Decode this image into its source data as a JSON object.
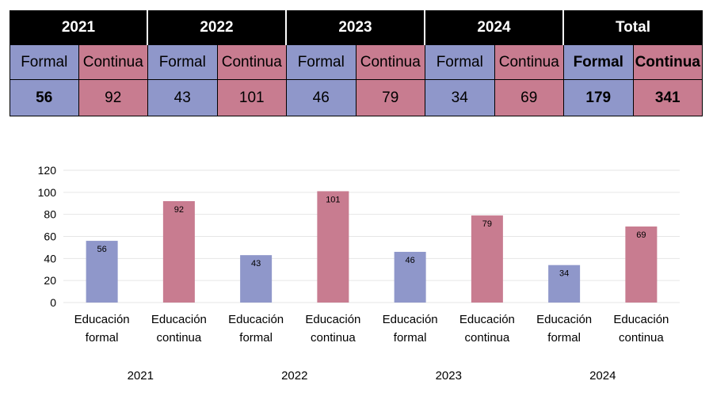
{
  "table": {
    "years": [
      "2021",
      "2022",
      "2023",
      "2024",
      "Total"
    ],
    "sub_labels": [
      "Formal",
      "Continua"
    ],
    "values": [
      [
        "56",
        "92"
      ],
      [
        "43",
        "101"
      ],
      [
        "46",
        "79"
      ],
      [
        "34",
        "69"
      ],
      [
        "179",
        "341"
      ]
    ]
  },
  "colors": {
    "formal": "#8f97ca",
    "continua": "#c87c90",
    "header_bg": "#000000",
    "grid": "#e6e6e6"
  },
  "chart_data": {
    "type": "bar",
    "title": "",
    "xlabel": "",
    "ylabel": "",
    "ylim": [
      0,
      120
    ],
    "y_ticks": [
      0,
      20,
      40,
      60,
      80,
      100,
      120
    ],
    "grid": true,
    "legend": "none",
    "groups": [
      "2021",
      "2022",
      "2023",
      "2024"
    ],
    "categories": [
      {
        "label": [
          "Educación",
          "formal"
        ],
        "group": "2021",
        "value": 56,
        "series": "formal"
      },
      {
        "label": [
          "Educación",
          "continua"
        ],
        "group": "2021",
        "value": 92,
        "series": "continua"
      },
      {
        "label": [
          "Educación",
          "formal"
        ],
        "group": "2022",
        "value": 43,
        "series": "formal"
      },
      {
        "label": [
          "Educación",
          "continua"
        ],
        "group": "2022",
        "value": 101,
        "series": "continua"
      },
      {
        "label": [
          "Educación",
          "formal"
        ],
        "group": "2023",
        "value": 46,
        "series": "formal"
      },
      {
        "label": [
          "Educación",
          "continua"
        ],
        "group": "2023",
        "value": 79,
        "series": "continua"
      },
      {
        "label": [
          "Educación",
          "formal"
        ],
        "group": "2024",
        "value": 34,
        "series": "formal"
      },
      {
        "label": [
          "Educación",
          "continua"
        ],
        "group": "2024",
        "value": 69,
        "series": "continua"
      }
    ]
  }
}
